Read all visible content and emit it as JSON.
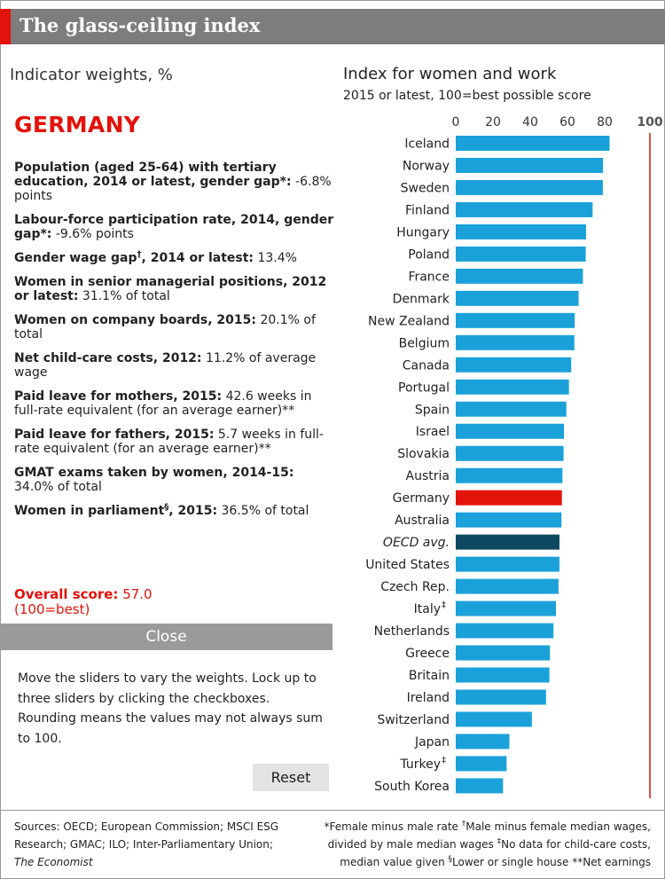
{
  "header": {
    "title": "The glass-ceiling index",
    "accent_color": "#e3120b"
  },
  "panel": {
    "weights_title": "Indicator weights, %",
    "country": "GERMANY",
    "indicators": [
      {
        "label": "Population (aged 25-64) with tertiary education, 2014 or latest, gender gap*:",
        "value": "-6.8% points"
      },
      {
        "label": "Labour-force participation rate, 2014, gender gap*:",
        "value": "-9.6% points"
      },
      {
        "label": "Gender wage gap",
        "mark": "†",
        "label_after": ", 2014 or latest:",
        "value": "13.4%"
      },
      {
        "label": "Women in senior managerial positions, 2012 or latest:",
        "value": "31.1% of total"
      },
      {
        "label": "Women on company boards, 2015:",
        "value": "20.1% of total"
      },
      {
        "label": "Net child-care costs, 2012:",
        "value": "11.2% of average wage"
      },
      {
        "label": "Paid leave for mothers, 2015:",
        "value": "42.6 weeks in full-rate equivalent (for an average earner)**"
      },
      {
        "label": "Paid leave for fathers, 2015:",
        "value": "5.7 weeks in full-rate equivalent (for an average earner)**"
      },
      {
        "label": "GMAT exams taken by women, 2014-15:",
        "value": "34.0% of total"
      },
      {
        "label": "Women in parliament",
        "mark": "§",
        "label_after": ", 2015:",
        "value": "36.5% of total"
      }
    ],
    "overall_label": "Overall score:",
    "overall_value": "57.0",
    "overall_note": "(100=best)",
    "close_label": "Close",
    "instructions": "Move the sliders to vary the weights. Lock up to three sliders by clicking the checkboxes. Rounding means the values may not always sum to 100.",
    "reset_label": "Reset"
  },
  "chart_data": {
    "type": "bar",
    "orientation": "horizontal",
    "title": "Index for women and work",
    "subtitle": "2015 or latest, 100=best possible score",
    "xticks": [
      0,
      20,
      40,
      60,
      80,
      100
    ],
    "xlim": [
      0,
      100
    ],
    "reference_line": 100,
    "reference_color": "#e3120b",
    "bar_color": "#1ba1d9",
    "highlight_color": "#e3120b",
    "average_color": "#0d4a62",
    "categories": [
      "Iceland",
      "Norway",
      "Sweden",
      "Finland",
      "Hungary",
      "Poland",
      "France",
      "Denmark",
      "New Zealand",
      "Belgium",
      "Canada",
      "Portugal",
      "Spain",
      "Israel",
      "Slovakia",
      "Austria",
      "Germany",
      "Australia",
      "OECD avg.",
      "United States",
      "Czech Rep.",
      "Italy",
      "Netherlands",
      "Greece",
      "Britain",
      "Ireland",
      "Switzerland",
      "Japan",
      "Turkey",
      "South Korea"
    ],
    "label_marks": [
      "",
      "",
      "",
      "",
      "",
      "",
      "",
      "",
      "",
      "",
      "",
      "",
      "",
      "",
      "",
      "",
      "",
      "",
      "",
      "",
      "",
      "‡",
      "",
      "",
      "",
      "",
      "",
      "",
      "‡",
      ""
    ],
    "values": [
      82.6,
      79.1,
      79.0,
      73.5,
      70.0,
      69.8,
      68.3,
      66.0,
      63.9,
      63.7,
      62.0,
      60.8,
      59.4,
      58.1,
      57.9,
      57.3,
      57.0,
      56.8,
      55.7,
      55.7,
      55.2,
      53.8,
      52.5,
      50.6,
      50.3,
      48.5,
      40.9,
      28.8,
      27.3,
      25.4
    ],
    "highlight": "Germany",
    "average": "OECD avg."
  },
  "footer": {
    "sources": "Sources: OECD; European Commission; MSCI ESG Research; GMAC; ILO; Inter-Parliamentary Union;",
    "sources_italic": "The Economist",
    "notes": [
      {
        "text": "*Female minus male rate "
      },
      {
        "mark": "†",
        "text": "Male minus female median wages, divided by male median wages "
      },
      {
        "mark": "‡",
        "text": "No data for child-care costs, median value given "
      },
      {
        "mark": "§",
        "text": "Lower or single house **Net earnings"
      }
    ]
  }
}
